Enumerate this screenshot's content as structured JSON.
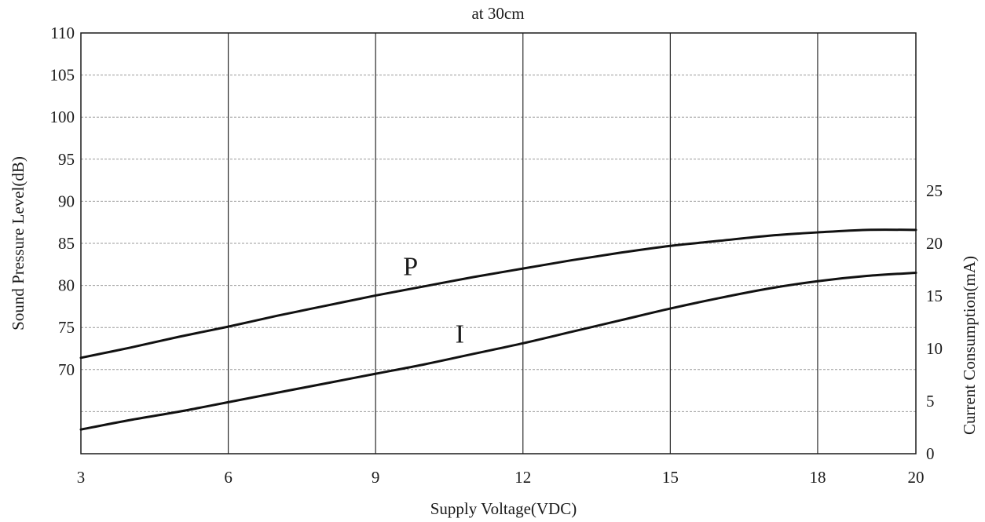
{
  "chart_data": {
    "type": "line",
    "title": "at 30cm",
    "xlabel": "Supply Voltage(VDC)",
    "ylabel_left": "Sound Pressure Level(dB)",
    "ylabel_right": "Current Consumption(mA)",
    "x_ticks": [
      "3",
      "6",
      "9",
      "12",
      "15",
      "18",
      "20"
    ],
    "x_tick_values": [
      3,
      6,
      9,
      12,
      15,
      18,
      20
    ],
    "y_left_ticks": [
      "70",
      "75",
      "80",
      "85",
      "90",
      "95",
      "100",
      "105",
      "110"
    ],
    "y_left_tick_values": [
      70,
      75,
      80,
      85,
      90,
      95,
      100,
      105,
      110
    ],
    "y_right_ticks": [
      "0",
      "5",
      "10",
      "15",
      "20",
      "25"
    ],
    "y_right_tick_values": [
      0,
      5,
      10,
      15,
      20,
      25
    ],
    "y_left_lim": [
      60,
      110
    ],
    "y_right_lim": [
      0,
      40
    ],
    "grid": true,
    "series": [
      {
        "name": "P",
        "axis": "left",
        "x": [
          3,
          4,
          5,
          6,
          7,
          8,
          9,
          10,
          11,
          12,
          13,
          14,
          15,
          16,
          17,
          18,
          19,
          20
        ],
        "values": [
          71.4,
          72.6,
          73.9,
          75.1,
          76.4,
          77.6,
          78.8,
          79.9,
          81.0,
          82.0,
          83.0,
          83.9,
          84.7,
          85.3,
          85.9,
          86.3,
          86.6,
          86.6
        ]
      },
      {
        "name": "I",
        "axis": "right",
        "x": [
          3,
          4,
          5,
          6,
          7,
          8,
          9,
          10,
          11,
          12,
          13,
          14,
          15,
          16,
          17,
          18,
          19,
          20
        ],
        "values": [
          2.3,
          3.2,
          4.0,
          4.9,
          5.8,
          6.7,
          7.6,
          8.5,
          9.5,
          10.5,
          11.6,
          12.7,
          13.8,
          14.8,
          15.7,
          16.4,
          16.9,
          17.2
        ]
      }
    ]
  }
}
